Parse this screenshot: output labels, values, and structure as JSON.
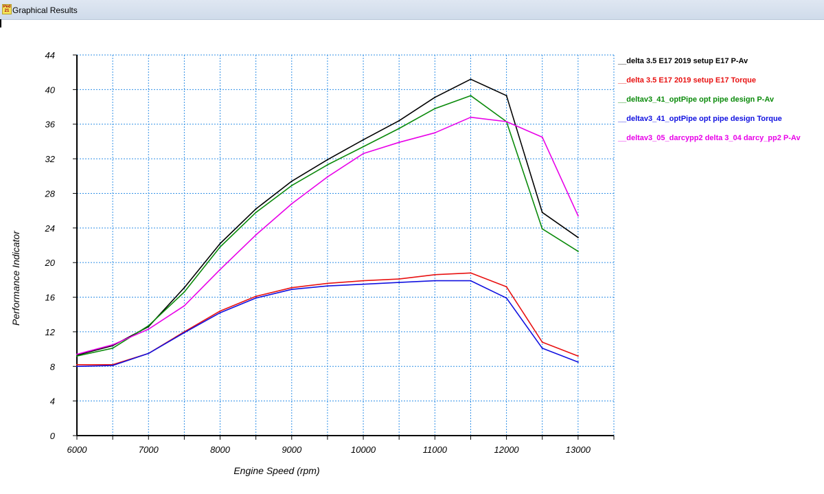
{
  "window": {
    "title": "Graphical Results",
    "icon": "app-logo-icon",
    "icon_text": "Ped 21"
  },
  "chart_data": {
    "type": "line",
    "title": "",
    "xlabel": "Engine Speed (rpm)",
    "ylabel": "Performance Indicator",
    "xlim": [
      6000,
      13500
    ],
    "ylim": [
      0,
      44
    ],
    "x_ticks": [
      6000,
      7000,
      8000,
      9000,
      10000,
      11000,
      12000,
      13000
    ],
    "y_ticks": [
      0,
      4,
      8,
      12,
      16,
      20,
      24,
      28,
      32,
      36,
      40,
      44
    ],
    "grid": true,
    "grid_style": "dotted",
    "legend_position": "right",
    "x": [
      6000,
      6500,
      7000,
      7500,
      8000,
      8500,
      9000,
      9500,
      10000,
      10500,
      11000,
      11500,
      12000,
      12500,
      13000
    ],
    "series": [
      {
        "name": "__delta 3.5 E17 2019 setup E17  P-Av",
        "color": "#000000",
        "values": [
          9.3,
          10.4,
          12.6,
          17.1,
          22.2,
          26.2,
          29.4,
          31.9,
          34.2,
          36.4,
          39.1,
          41.2,
          39.3,
          25.8,
          22.9
        ]
      },
      {
        "name": "__delta 3.5 E17 2019 setup E17  Torque",
        "color": "#e81010",
        "values": [
          8.2,
          8.2,
          9.5,
          12.0,
          14.4,
          16.1,
          17.1,
          17.6,
          17.9,
          18.1,
          18.6,
          18.8,
          17.2,
          10.8,
          9.2
        ]
      },
      {
        "name": "__deltav3_41_optPipe opt pipe design  P-Av",
        "color": "#0a8a0a",
        "values": [
          9.2,
          10.1,
          12.7,
          16.6,
          21.8,
          25.8,
          28.9,
          31.3,
          33.4,
          35.5,
          37.8,
          39.3,
          36.3,
          23.9,
          21.3
        ]
      },
      {
        "name": "__deltav3_41_optPipe opt pipe design  Torque",
        "color": "#1010e0",
        "values": [
          8.0,
          8.1,
          9.5,
          11.9,
          14.2,
          15.9,
          16.9,
          17.3,
          17.5,
          17.7,
          17.9,
          17.9,
          15.9,
          10.1,
          8.5
        ]
      },
      {
        "name": "__deltav3_05_darcypp2 delta 3_04 darcy_pp2  P-Av",
        "color": "#e800e8",
        "values": [
          9.4,
          10.5,
          12.3,
          15.0,
          19.2,
          23.2,
          26.8,
          29.9,
          32.6,
          33.9,
          35.0,
          36.8,
          36.3,
          34.5,
          25.4
        ]
      }
    ]
  }
}
